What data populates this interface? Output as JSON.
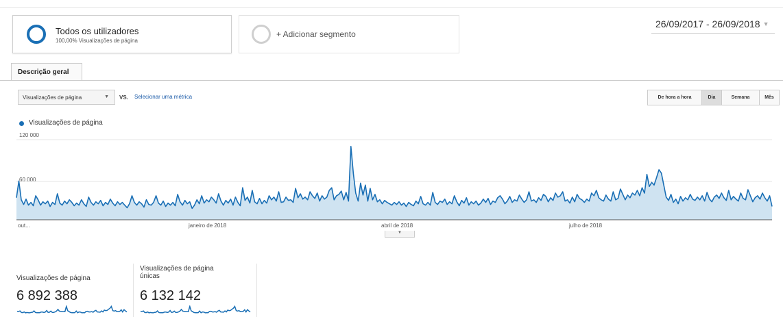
{
  "segments": {
    "active": {
      "title": "Todos os utilizadores",
      "subtitle": "100,00% Visualizações de página"
    },
    "add_label": "+ Adicionar segmento"
  },
  "date_range": "26/09/2017 - 26/09/2018",
  "tabs": [
    {
      "label": "Descrição geral"
    }
  ],
  "controls": {
    "metric_select": "Visualizações de página",
    "vs_label": "VS.",
    "select_metric_link": "Selecionar uma métrica",
    "granularity": [
      "De hora a hora",
      "Dia",
      "Semana",
      "Mês"
    ],
    "granularity_selected": "Dia"
  },
  "colors": {
    "accent": "#1a6fb5",
    "area_fill": "#cfe3f1",
    "gridline": "#e6e6e6"
  },
  "chart_data": {
    "type": "area",
    "series": [
      {
        "name": "Visualizações de página",
        "color": "#1a6fb5"
      }
    ],
    "y_ticks": [
      "120 000",
      "60 000"
    ],
    "ylim": [
      0,
      120000
    ],
    "x_tick_labels": [
      "out...",
      "janeiro de 2018",
      "abril de 2018",
      "julho de 2018"
    ],
    "x_range": [
      "2017-09-26",
      "2018-09-26"
    ],
    "values": [
      33000,
      58000,
      30000,
      23000,
      31000,
      22000,
      26000,
      21000,
      36000,
      30000,
      22000,
      27000,
      24000,
      28000,
      20000,
      26000,
      23000,
      39000,
      25000,
      22000,
      28000,
      24000,
      30000,
      26000,
      21000,
      25000,
      22000,
      30000,
      24000,
      20000,
      34000,
      26000,
      22000,
      27000,
      24000,
      29000,
      21000,
      26000,
      23000,
      31000,
      25000,
      21000,
      27000,
      23000,
      26000,
      22000,
      18000,
      24000,
      36000,
      26000,
      22000,
      27000,
      24000,
      19000,
      30000,
      23000,
      22000,
      26000,
      36000,
      25000,
      22000,
      28000,
      20000,
      25000,
      22000,
      26000,
      21000,
      38000,
      27000,
      22000,
      29000,
      24000,
      27000,
      17000,
      22000,
      30000,
      24000,
      36000,
      25000,
      30000,
      27000,
      34000,
      30000,
      25000,
      39000,
      28000,
      22000,
      29000,
      25000,
      31000,
      22000,
      34000,
      26000,
      21000,
      48000,
      29000,
      34000,
      25000,
      44000,
      27000,
      24000,
      32000,
      24000,
      29000,
      25000,
      36000,
      30000,
      34000,
      28000,
      42000,
      26000,
      27000,
      34000,
      29000,
      30000,
      26000,
      47000,
      33000,
      39000,
      31000,
      34000,
      30000,
      42000,
      36000,
      32000,
      40000,
      28000,
      36000,
      31000,
      34000,
      44000,
      48000,
      30000,
      36000,
      38000,
      43000,
      30000,
      41000,
      28000,
      110000,
      70000,
      40000,
      28000,
      55000,
      37000,
      52000,
      28000,
      47000,
      30000,
      38000,
      27000,
      30000,
      24000,
      29000,
      26000,
      24000,
      22000,
      26000,
      23000,
      27000,
      22000,
      25000,
      20000,
      26000,
      23000,
      21000,
      28000,
      24000,
      35000,
      24000,
      22000,
      26000,
      22000,
      41000,
      26000,
      23000,
      28000,
      26000,
      31000,
      23000,
      27000,
      24000,
      36000,
      27000,
      21000,
      29000,
      25000,
      33000,
      22000,
      27000,
      24000,
      28000,
      22000,
      25000,
      31000,
      26000,
      32000,
      23000,
      28000,
      26000,
      33000,
      36000,
      31000,
      24000,
      28000,
      35000,
      26000,
      30000,
      28000,
      37000,
      31000,
      26000,
      30000,
      42000,
      28000,
      30000,
      26000,
      33000,
      29000,
      38000,
      35000,
      27000,
      33000,
      29000,
      40000,
      34000,
      36000,
      42000,
      28000,
      30000,
      25000,
      34000,
      27000,
      38000,
      32000,
      30000,
      26000,
      31000,
      28000,
      40000,
      36000,
      44000,
      33000,
      30000,
      28000,
      37000,
      31000,
      28000,
      42000,
      30000,
      32000,
      46000,
      38000,
      30000,
      37000,
      33000,
      40000,
      37000,
      44000,
      36000,
      48000,
      40000,
      68000,
      50000,
      56000,
      52000,
      63000,
      75000,
      70000,
      52000,
      34000,
      29000,
      38000,
      26000,
      31000,
      24000,
      35000,
      28000,
      33000,
      30000,
      38000,
      31000,
      29000,
      34000,
      30000,
      36000,
      28000,
      41000,
      31000,
      27000,
      34000,
      37000,
      32000,
      40000,
      33000,
      29000,
      44000,
      30000,
      35000,
      31000,
      28000,
      40000,
      32000,
      30000,
      45000,
      36000,
      27000,
      33000,
      36000,
      31000,
      40000,
      33000,
      28000,
      36000,
      20000
    ]
  },
  "kpis": [
    {
      "label": "Visualizações de página",
      "value": "6 892 388"
    },
    {
      "label_line1": "Visualizações de página",
      "label_line2": "únicas",
      "value": "6 132 142"
    }
  ]
}
